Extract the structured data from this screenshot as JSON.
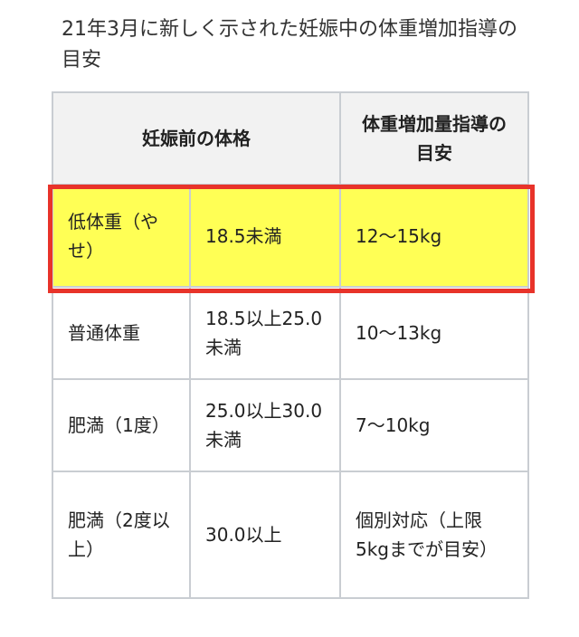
{
  "title": "21年3月に新しく示された妊娠中の体重増加指導の目安",
  "colors": {
    "highlight": "#ffff55",
    "highlight_border": "#e8332a",
    "header_bg": "#f2f2f2"
  },
  "table": {
    "headers": [
      "妊娠前の体格",
      "体重増加量指導の目安"
    ],
    "rows": [
      {
        "category": "低体重（やせ）",
        "bmi": "18.5未満",
        "gain": "12〜15kg"
      },
      {
        "category": "普通体重",
        "bmi": "18.5以上25.0未満",
        "gain": "10〜13kg"
      },
      {
        "category": "肥満（1度）",
        "bmi": "25.0以上30.0未満",
        "gain": "7〜10kg"
      },
      {
        "category": "肥満（2度以上）",
        "bmi": "30.0以上",
        "gain": "個別対応（上限5kgまでが目安）"
      }
    ]
  }
}
